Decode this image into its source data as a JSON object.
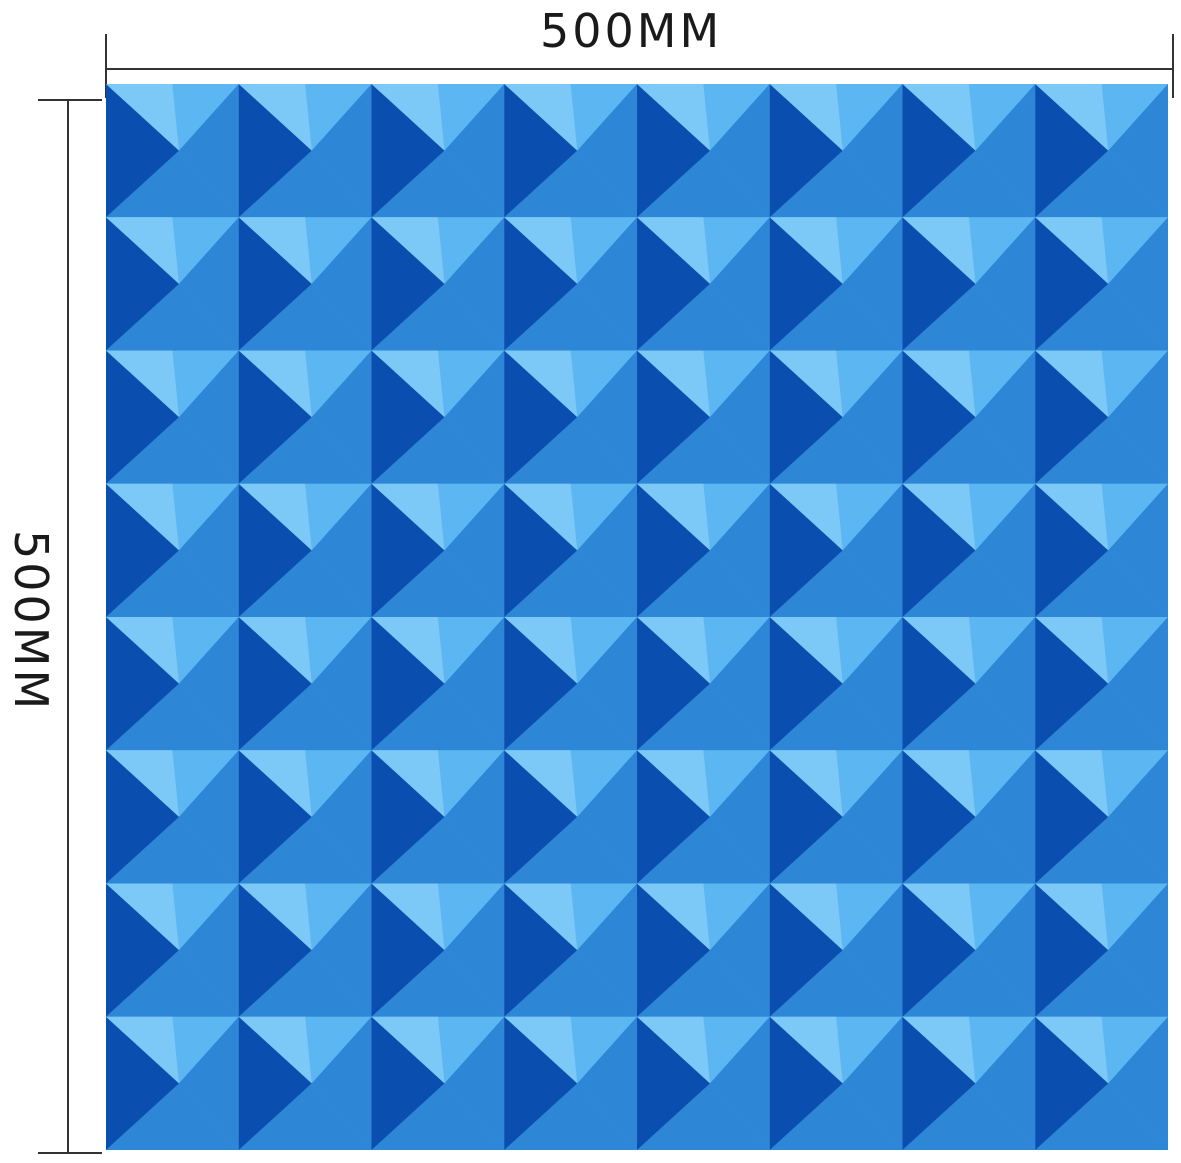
{
  "dimensions": {
    "width_label": "500MM",
    "height_label": "500MM"
  },
  "panel": {
    "object": "pyramid-foam-acoustic-panel",
    "rows": 8,
    "columns": 8,
    "colors": {
      "light_face": "#5cb6f2",
      "mid_face": "#2d86d6",
      "shadow_face": "#0a4fb0",
      "edge_face": "#7cc8f6",
      "base": "#4aa6e8"
    }
  }
}
